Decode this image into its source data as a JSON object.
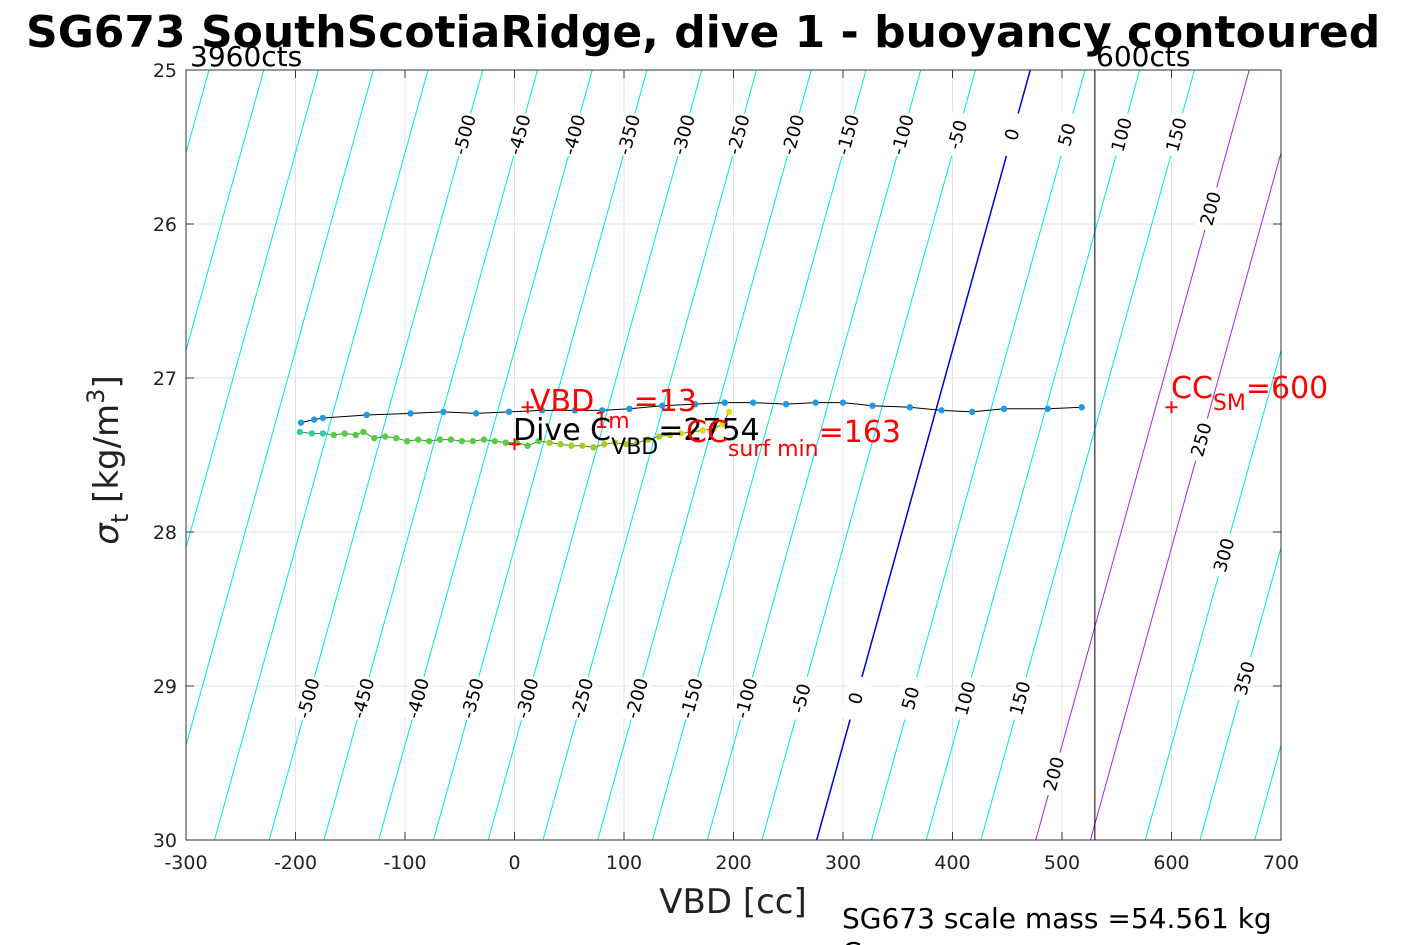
{
  "chart_data": {
    "type": "scatter",
    "title": "SG673 SouthScotiaRidge, dive 1 - buoyancy contoured",
    "xlabel": "VBD [cc]",
    "ylabel_symbol": "σ",
    "ylabel_sub": "t",
    "ylabel_unit": "[kg/m",
    "ylabel_sup": "3",
    "ylabel_close": "]",
    "xlim": [
      -300,
      700
    ],
    "ylim": [
      25,
      30
    ],
    "y_reversed": true,
    "grid": true,
    "xticks": [
      -300,
      -200,
      -100,
      0,
      100,
      200,
      300,
      400,
      500,
      600,
      700
    ],
    "xtick_labels": [
      "-300",
      "-200",
      "-100",
      "0",
      "100",
      "200",
      "300",
      "400",
      "500",
      "600",
      "700"
    ],
    "yticks": [
      25,
      26,
      27,
      28,
      29,
      30
    ],
    "ytick_labels": [
      "25",
      "26",
      "27",
      "28",
      "29",
      "30"
    ],
    "limit_labels": {
      "min": "3960cts",
      "max": "600cts"
    },
    "limit_line_x": 530,
    "contours": {
      "levels": [
        -500,
        -450,
        -400,
        -350,
        -300,
        -250,
        -200,
        -150,
        -100,
        -50,
        0,
        50,
        100,
        150,
        200,
        250,
        300,
        350
      ],
      "x_at_sigma30_for_zero": 276,
      "dx_per_sigma": -39,
      "spacing_per_level": 1.0,
      "colors": {
        "negative": "#00e5ee",
        "positive_low": "#00e5ee",
        "zero": "#0000cc",
        "buoyant_200": "#aa22dd"
      },
      "magenta_levels": [
        200,
        250
      ],
      "top_labels": [
        "-500",
        "-450",
        "-400",
        "-350",
        "-300",
        "-250",
        "-200",
        "-150",
        "-100",
        "-50",
        "0",
        "50",
        "100",
        "150"
      ],
      "bottom_labels": [
        "-500",
        "-450",
        "-400",
        "-350",
        "-300",
        "-250",
        "-200",
        "-150",
        "-100",
        "-50",
        "0",
        "50",
        "100",
        "150"
      ],
      "right_labels": [
        "200",
        "250",
        "300",
        "350"
      ],
      "extra_label": "200"
    },
    "series": [
      {
        "role": "dive",
        "color": "#1f9ae0",
        "x": [
          -195,
          -183,
          -175,
          -135,
          -95,
          -65,
          -35,
          -5,
          25,
          55,
          80,
          105,
          135,
          165,
          192,
          218,
          248,
          275,
          300,
          327,
          361,
          390,
          418,
          447,
          487,
          518
        ],
        "y": [
          27.29,
          27.27,
          27.26,
          27.24,
          27.23,
          27.22,
          27.23,
          27.22,
          27.21,
          27.21,
          27.21,
          27.2,
          27.18,
          27.17,
          27.16,
          27.16,
          27.17,
          27.16,
          27.16,
          27.18,
          27.19,
          27.21,
          27.22,
          27.2,
          27.2,
          27.19
        ]
      },
      {
        "role": "climb",
        "color": "#55cc44",
        "x": [
          -196,
          -185,
          -175,
          -165,
          -155,
          -145,
          -138,
          -128,
          -118,
          -108,
          -98,
          -88,
          -78,
          -68,
          -58,
          -48,
          -38,
          -28,
          -18,
          -8,
          2,
          12,
          22,
          32,
          42,
          52,
          62,
          72,
          82,
          92,
          102,
          112,
          122,
          132,
          142,
          152,
          162,
          172,
          182,
          190,
          196
        ],
        "y": [
          27.35,
          27.36,
          27.36,
          27.37,
          27.36,
          27.37,
          27.35,
          27.39,
          27.38,
          27.39,
          27.41,
          27.4,
          27.41,
          27.4,
          27.4,
          27.41,
          27.41,
          27.4,
          27.41,
          27.42,
          27.42,
          27.44,
          27.41,
          27.42,
          27.43,
          27.44,
          27.44,
          27.45,
          27.43,
          27.42,
          27.43,
          27.42,
          27.4,
          27.38,
          27.37,
          27.36,
          27.35,
          27.34,
          27.33,
          27.3,
          27.22
        ]
      }
    ],
    "markers": [
      {
        "label": "VBD_1m",
        "x": 12,
        "y": 27.19,
        "color": "#ff0000"
      },
      {
        "label": "CC_surf_min",
        "x": 0,
        "y": 27.43,
        "color": "#ff0000"
      },
      {
        "label": "CC_SM",
        "x": 600,
        "y": 27.19,
        "color": "#ff0000"
      }
    ],
    "annotations": {
      "vbd1m": {
        "main": "VBD",
        "sub": "1m",
        "value": "=13"
      },
      "dive_c": {
        "main": "Dive C",
        "sub": "VBD",
        "value": "=2754"
      },
      "cc_surf": {
        "main": "CC",
        "sub": "surf min",
        "value": "=163"
      },
      "cc_sm": {
        "main": "CC",
        "sub": "SM",
        "value": "=600"
      }
    },
    "footer": {
      "line1": "SG673 scale mass =54.561 kg",
      "line2": "C"
    }
  }
}
